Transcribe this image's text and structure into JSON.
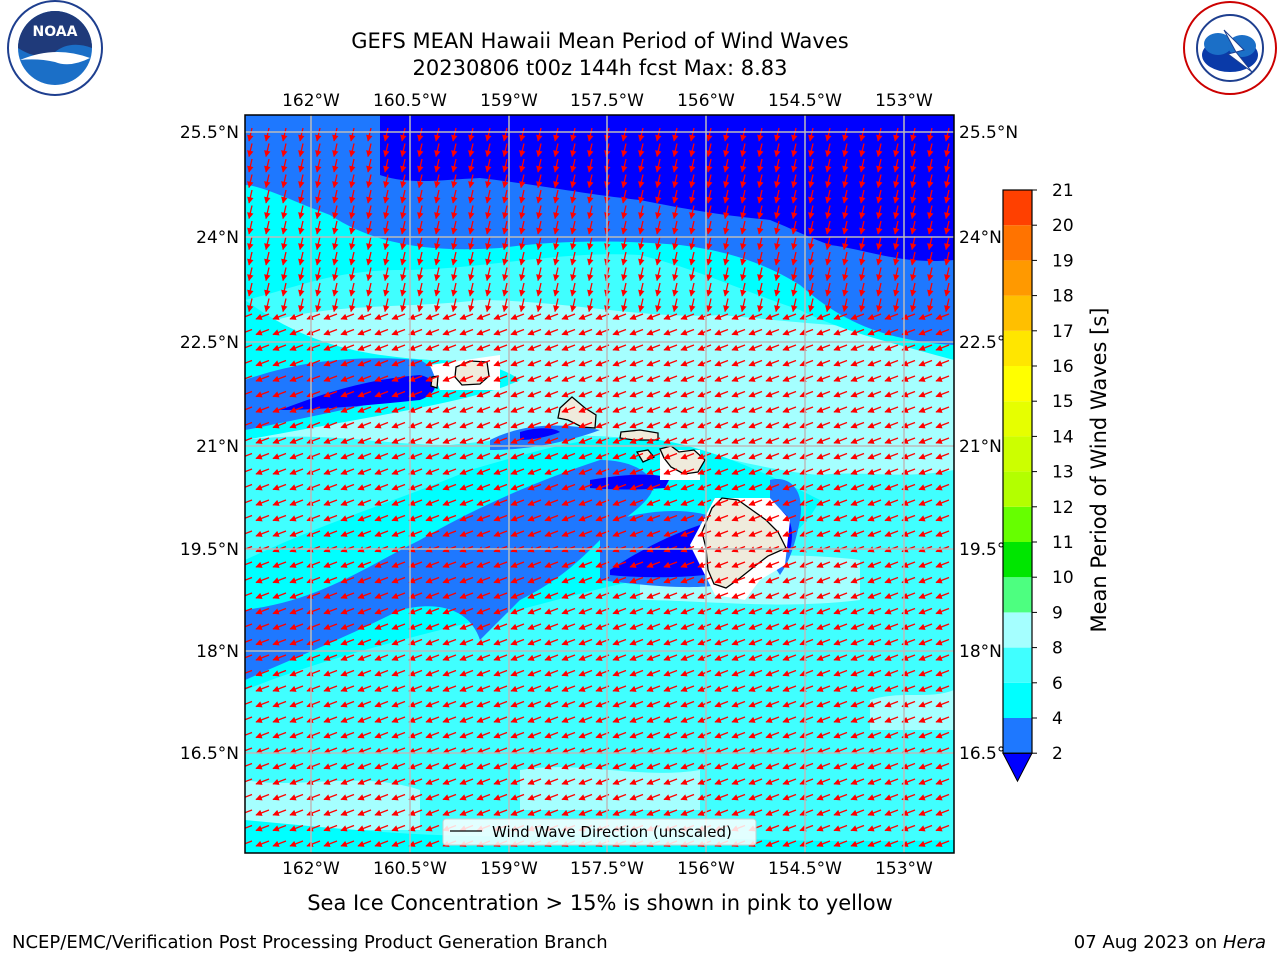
{
  "header": {
    "title_line1": "GEFS MEAN Hawaii Mean Period of Wind Waves",
    "title_line2": "20230806 t00z 144h fcst   Max: 8.83"
  },
  "logos": {
    "left": "NOAA",
    "left_ring_text": "NATIONAL OCEANIC AND ATMOSPHERIC ADMINISTRATION · U.S. DEPARTMENT OF COMMERCE",
    "right_ring_text": "NATIONAL WEATHER SERVICE"
  },
  "map": {
    "lon_ticks": [
      "162°W",
      "160.5°W",
      "159°W",
      "157.5°W",
      "156°W",
      "154.5°W",
      "153°W"
    ],
    "lat_ticks": [
      "25.5°N",
      "24°N",
      "22.5°N",
      "21°N",
      "19.5°N",
      "18°N",
      "16.5°N"
    ],
    "legend_label": "Wind Wave Direction (unscaled)",
    "colors": {
      "lt2": "#0000ff",
      "c2_4": "#1e78ff",
      "c4_6": "#00ffff",
      "c6_8": "#40ffff",
      "c8_9": "#a5ffff",
      "land": "#efebdc",
      "arrow": "#ff0000"
    }
  },
  "colorbar": {
    "label": "Mean Period of Wind Waves [s]",
    "ticks": [
      "2",
      "4",
      "6",
      "8",
      "9",
      "10",
      "11",
      "12",
      "13",
      "14",
      "15",
      "16",
      "17",
      "18",
      "19",
      "20",
      "21"
    ],
    "colors": [
      "#1e78ff",
      "#00ffff",
      "#40ffff",
      "#a5ffff",
      "#4dff80",
      "#00e600",
      "#66ff00",
      "#b3ff00",
      "#ccff00",
      "#e6ff00",
      "#ffff00",
      "#ffe600",
      "#ffbf00",
      "#ff9900",
      "#ff7300",
      "#ff4000",
      "#ff0000"
    ],
    "under_color": "#0000ff"
  },
  "footer": {
    "note": "Sea Ice Concentration > 15% is shown in pink to yellow",
    "left": "NCEP/EMC/Verification Post Processing Product Generation Branch",
    "right_prefix": "07 Aug 2023 on ",
    "right_host": "Hera"
  }
}
